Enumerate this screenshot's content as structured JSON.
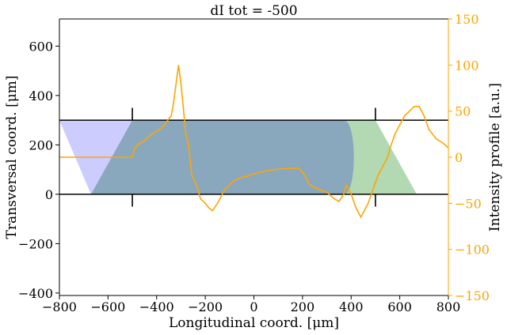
{
  "chart_data": {
    "type": "line",
    "title": "dI tot = -500",
    "xlabel": "Longitudinal coord. [μm]",
    "ylabel": "Transversal coord. [μm]",
    "y2label": "Intensity profile [a.u.]",
    "xlim": [
      -800,
      800
    ],
    "ylim": [
      -410,
      710
    ],
    "y2lim": [
      -150,
      150
    ],
    "x_ticks": [
      "−800",
      "−600",
      "−400",
      "−200",
      "0",
      "200",
      "400",
      "600",
      "800"
    ],
    "x_tick_values": [
      -800,
      -600,
      -400,
      -200,
      0,
      200,
      400,
      600,
      800
    ],
    "y_ticks": [
      "−400",
      "−200",
      "0",
      "200",
      "400",
      "600"
    ],
    "y_tick_values": [
      -400,
      -200,
      0,
      200,
      400,
      600
    ],
    "y2_ticks": [
      "−150",
      "−100",
      "−50",
      "0",
      "50",
      "100",
      "150"
    ],
    "y2_tick_values": [
      -150,
      -100,
      -50,
      0,
      50,
      100,
      150
    ],
    "colors": {
      "intensity": "#ffa500",
      "blue_region": "#0000ff",
      "green_region": "#008000",
      "overlap_region": "#8aa8bd",
      "lines": "#000000"
    },
    "regions": [
      {
        "id": "blue",
        "x": [
          -800,
          -500,
          -500,
          -670
        ],
        "y": [
          300,
          300,
          0,
          0
        ]
      },
      {
        "id": "green",
        "x": [
          370,
          500,
          670,
          370
        ],
        "y": [
          300,
          300,
          0,
          0
        ]
      },
      {
        "id": "overlap",
        "x": [
          -670,
          -500,
          370,
          370
        ],
        "y": [
          0,
          300,
          300,
          0
        ],
        "rounded_right_edge": true
      }
    ],
    "horizontal_lines": [
      0,
      300
    ],
    "vertical_markers": [
      {
        "x": -500,
        "y_from": 300,
        "y_to": 350
      },
      {
        "x": -500,
        "y_from": -50,
        "y_to": 0
      },
      {
        "x": 500,
        "y_from": 300,
        "y_to": 350
      },
      {
        "x": 500,
        "y_from": -50,
        "y_to": 0
      }
    ],
    "series": [
      {
        "axis": "right",
        "x": [
          -800,
          -500,
          -490,
          -470,
          -450,
          -420,
          -400,
          -380,
          -360,
          -340,
          -330,
          -310,
          -300,
          -280,
          -270,
          -255,
          -240,
          -230,
          -220,
          -200,
          -185,
          -170,
          -150,
          -140,
          -120,
          -100,
          -80,
          -50,
          -20,
          0,
          50,
          100,
          150,
          180,
          190,
          210,
          230,
          250,
          270,
          300,
          330,
          350,
          370,
          380,
          390,
          400,
          420,
          440,
          450,
          470,
          490,
          510,
          530,
          550,
          560,
          580,
          600,
          620,
          640,
          660,
          680,
          700,
          720,
          750,
          780,
          800
        ],
        "y": [
          0,
          0,
          10,
          15,
          18,
          25,
          28,
          32,
          38,
          45,
          60,
          100,
          80,
          25,
          15,
          -20,
          -28,
          -35,
          -45,
          -50,
          -55,
          -58,
          -50,
          -45,
          -35,
          -30,
          -25,
          -22,
          -20,
          -18,
          -15,
          -13,
          -12,
          -12,
          -13,
          -20,
          -30,
          -33,
          -35,
          -38,
          -45,
          -48,
          -40,
          -30,
          -35,
          -40,
          -55,
          -65,
          -60,
          -50,
          -35,
          -20,
          -10,
          0,
          10,
          25,
          35,
          45,
          50,
          55,
          55,
          45,
          30,
          20,
          15,
          10
        ]
      }
    ]
  }
}
